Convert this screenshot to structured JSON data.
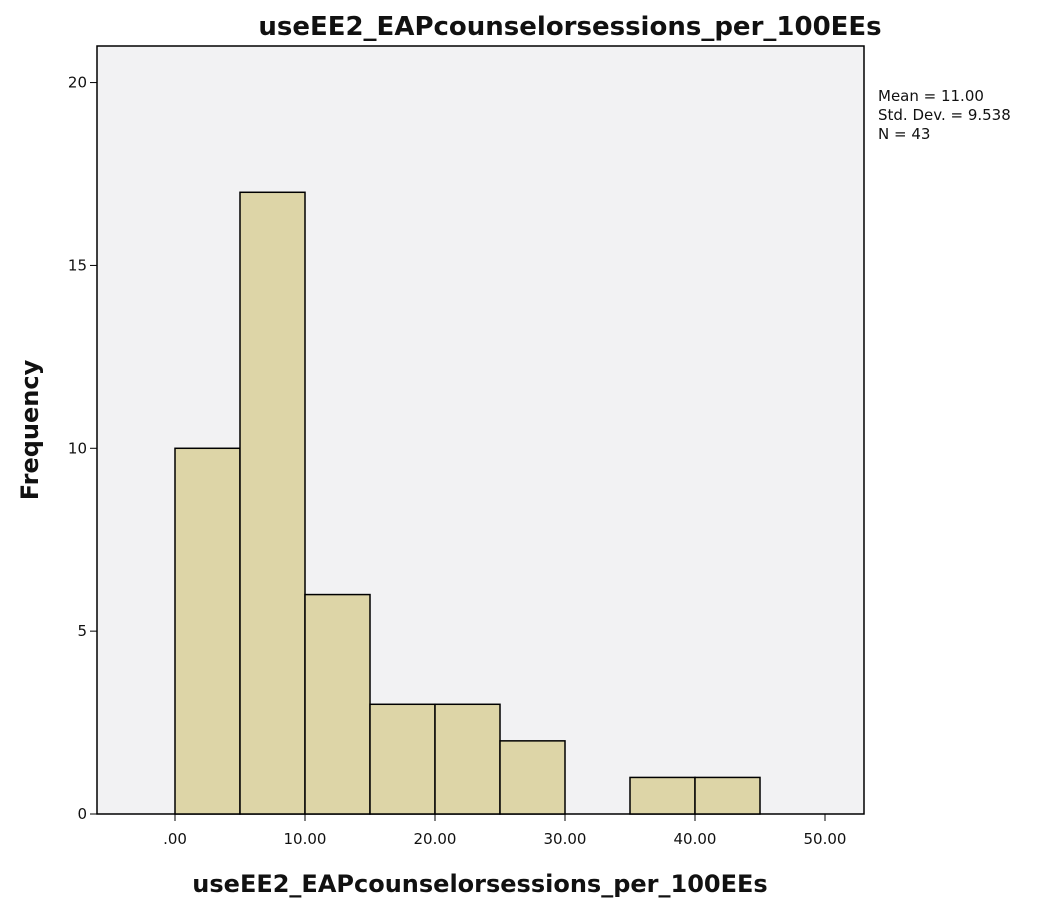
{
  "chart_data": {
    "type": "bar",
    "subtype": "histogram",
    "title": "useEE2_EAPcounselorsessions_per_100EEs",
    "xlabel": "useEE2_EAPcounselorsessions_per_100EEs",
    "ylabel": "Frequency",
    "bin_width": 5,
    "bins": [
      {
        "start": 0,
        "end": 5,
        "count": 10
      },
      {
        "start": 5,
        "end": 10,
        "count": 17
      },
      {
        "start": 10,
        "end": 15,
        "count": 6
      },
      {
        "start": 15,
        "end": 20,
        "count": 3
      },
      {
        "start": 20,
        "end": 25,
        "count": 3
      },
      {
        "start": 25,
        "end": 30,
        "count": 2
      },
      {
        "start": 30,
        "end": 35,
        "count": 0
      },
      {
        "start": 35,
        "end": 40,
        "count": 1
      },
      {
        "start": 40,
        "end": 45,
        "count": 1
      }
    ],
    "xlim": [
      -6,
      53
    ],
    "ylim": [
      0,
      21
    ],
    "x_ticks": [
      0,
      10,
      20,
      30,
      40,
      50
    ],
    "x_tick_labels": [
      ".00",
      "10.00",
      "20.00",
      "30.00",
      "40.00",
      "50.00"
    ],
    "y_ticks": [
      0,
      5,
      10,
      15,
      20
    ],
    "y_tick_labels": [
      "0",
      "5",
      "10",
      "15",
      "20"
    ],
    "grid": false,
    "statistics": {
      "mean_label": "Mean = 11.00",
      "std_label": "Std. Dev. = 9.538",
      "n_label": "N = 43"
    },
    "colors": {
      "bar_fill": "#ddd5a7",
      "bar_stroke": "#000000",
      "plot_background": "#f2f2f3"
    }
  }
}
